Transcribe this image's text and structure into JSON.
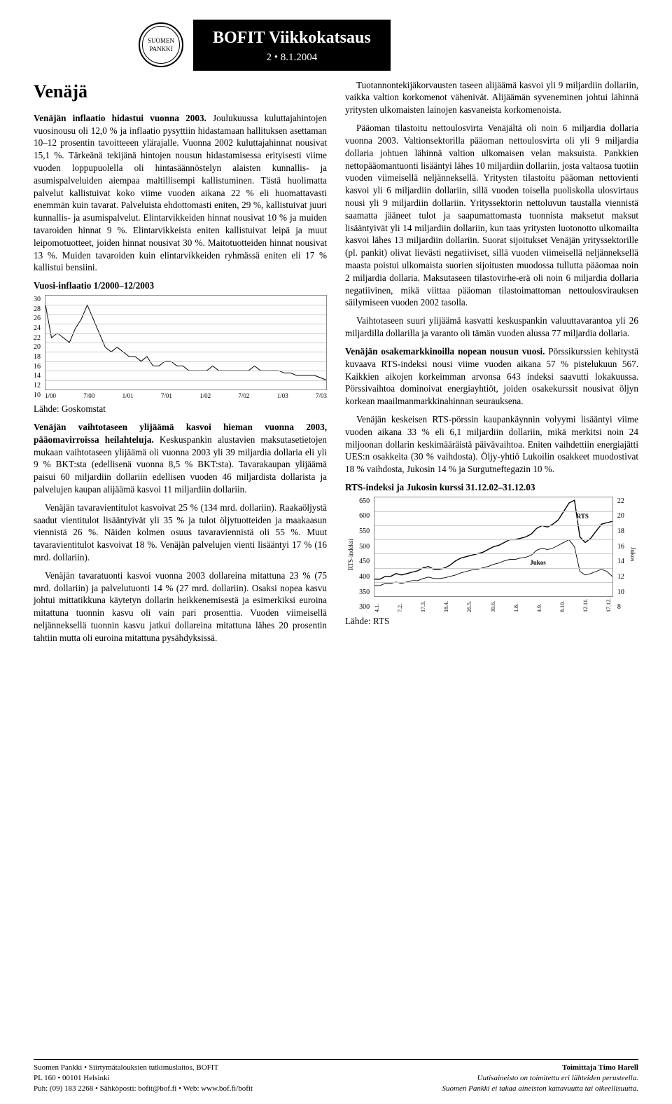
{
  "header": {
    "title": "BOFIT Viikkokatsaus",
    "issue": "2 • 8.1.2004",
    "logo_text": "SUOMEN PANKKI"
  },
  "left": {
    "country": "Venäjä",
    "p1_lead": "Venäjän inflaatio hidastui vuonna 2003.",
    "p1_body": " Joulukuussa kuluttajahintojen vuosinousu oli 12,0 % ja inflaatio pysyttiin hidastamaan hallituksen asettaman 10–12 prosentin tavoitteeen ylärajalle. Vuonna 2002 kuluttajahinnat nousivat 15,1 %. Tärkeänä tekijänä hintojen nousun hidastamisessa erityisesti viime vuoden loppupuolella oli hintasäännöstelyn alaisten kunnallis- ja asumispalveluiden aiempaa maltillisempi kallistuminen. Tästä huolimatta palvelut kallistuivat koko viime vuoden aikana 22 % eli huomattavasti enemmän kuin tavarat. Palveluista ehdottomasti eniten, 29 %, kallistuivat juuri kunnallis- ja asumispalvelut. Elintarvikkeiden hinnat nousivat 10 % ja muiden tavaroiden hinnat 9 %. Elintarvikkeista eniten kallistuivat leipä ja muut leipomotuotteet, joiden hinnat nousivat 30 %. Maitotuotteiden hinnat nousivat 13 %. Muiden tavaroiden kuin elintarvikkeiden ryhmässä eniten eli 17 % kallistui bensiini.",
    "chart1_title": "Vuosi-inflaatio 1/2000–12/2003",
    "chart1": {
      "type": "line",
      "yticks": [
        "10",
        "12",
        "14",
        "16",
        "18",
        "20",
        "22",
        "24",
        "26",
        "28",
        "30"
      ],
      "ylim": [
        10,
        30
      ],
      "xticks": [
        "1/00",
        "7/00",
        "1/01",
        "7/01",
        "1/02",
        "7/02",
        "1/03",
        "7/03"
      ],
      "series_values": [
        28,
        21,
        22,
        21,
        20,
        23,
        25,
        28,
        25,
        22,
        19,
        18,
        19,
        18,
        17,
        17,
        16,
        17,
        15,
        15,
        16,
        16,
        15,
        15,
        14,
        14,
        14,
        14,
        15,
        14,
        14,
        14,
        14,
        14,
        14,
        15,
        14,
        14,
        14,
        14,
        13.5,
        13.5,
        13,
        13,
        13,
        13,
        12.5,
        12
      ],
      "line_color": "#000000",
      "grid_color": "#cccccc",
      "background": "#ffffff"
    },
    "source1": "Lähde: Goskomstat",
    "p2_lead": "Venäjän vaihtotaseen ylijäämä kasvoi hieman vuonna 2003, pääomavirroissa heilahteluja.",
    "p2_body": " Keskuspankin alustavien maksutasetietojen mukaan vaihtotaseen ylijäämä oli vuonna 2003 yli 39 miljardia dollaria eli yli 9 % BKT:sta (edellisenä vuonna 8,5 % BKT:sta). Tavarakaupan ylijäämä paisui 60 miljardiin dollariin edellisen vuoden 46 miljardista dollarista ja palvelujen kaupan alijäämä kasvoi 11 miljardiin dollariin.",
    "p3": "Venäjän tavaravientitulot kasvoivat 25 % (134 mrd. dollariin). Raakaöljystä saadut vientitulot lisääntyivät yli 35 % ja tulot öljytuotteiden ja maakaasun viennistä 26 %. Näiden kolmen osuus tavaraviennistä oli 55 %. Muut tavaravientitulot kasvoivat 18 %. Venäjän palvelujen vienti lisääntyi 17 % (16 mrd. dollariin).",
    "p4": "Venäjän tavaratuonti kasvoi vuonna 2003 dollareina mitattuna 23 % (75 mrd. dollariin) ja palvelutuonti 14 % (27 mrd. dollariin). Osaksi nopea kasvu johtui mittatikkuna käytetyn dollarin heikkenemisestä ja esimerkiksi euroina mitattuna tuonnin kasvu oli vain pari prosenttia. Vuoden viimeisellä neljänneksellä tuonnin kasvu jatkui dollareina mitattuna lähes 20 prosentin tahtiin mutta oli euroina mitattuna pysähdyksissä."
  },
  "right": {
    "p1": "Tuotannontekijäkorvausten taseen alijäämä kasvoi yli 9 miljardiin dollariin, vaikka valtion korkomenot vähenivät. Alijäämän syveneminen johtui lähinnä yritysten ulkomaisten lainojen kasvaneista korkomenoista.",
    "p2": "Pääoman tilastoitu nettoulosvirta Venäjältä oli noin 6 miljardia dollaria vuonna 2003. Valtionsektorilla pääoman nettoulosvirta oli yli 9 miljardia dollaria johtuen lähinnä valtion ulkomaisen velan maksuista. Pankkien nettopääomantuonti lisääntyi lähes 10 miljardiin dollariin, josta valtaosa tuotiin vuoden viimeisellä neljänneksellä. Yritysten tilastoitu pääoman nettovienti kasvoi yli 6 miljardiin dollariin, sillä vuoden toisella puoliskolla ulosvirtaus nousi yli 9 miljardiin dollariin. Yrityssektorin nettoluvun taustalla viennistä saamatta jääneet tulot ja saapumattomasta tuonnista maksetut maksut lisääntyivät yli 14 miljardiin dollariin, kun taas yritysten luotonotto ulkomailta kasvoi lähes 13 miljardiin dollariin. Suorat sijoitukset Venäjän yrityssektorille (pl. pankit) olivat lievästi negatiiviset, sillä vuoden viimeisellä neljänneksellä maasta poistui ulkomaista suorien sijoitusten muodossa tullutta pääomaa noin 2 miljardia dollaria. Maksutaseen tilastovirhe-erä oli noin 6 miljardia dollaria negatiivinen, mikä viittaa pääoman tilastoimattoman nettoulosvirauksen säilymiseen vuoden 2002 tasolla.",
    "p3": "Vaihtotaseen suuri ylijäämä kasvatti keskuspankin valuuttavarantoa yli 26 miljardilla dollarilla ja varanto oli tämän vuoden alussa 77 miljardia dollaria.",
    "p4_lead": "Venäjän osakemarkkinoilla nopean nousun vuosi.",
    "p4_body": " Pörssikurssien kehitystä kuvaava RTS-indeksi nousi viime vuoden aikana 57 % pistelukuun 567. Kaikkien aikojen korkeimman arvonsa 643 indeksi saavutti lokakuussa. Pörssivaihtoa dominoivat energiayhtiöt, joiden osakekurssit nousivat öljyn korkean maailmanmarkkinahinnan seurauksena.",
    "p5": "Venäjän keskeisen RTS-pörssin kaupankäynnin volyymi lisääntyi viime vuoden aikana 33 % eli 6,1 miljardiin dollariin, mikä merkitsi noin 24 miljoonan dollarin keskimääräistä päivävaihtoa. Eniten vaihdettiin energiajätti UES:n osakkeita (30 % vaihdosta). Öljy-yhtiö Lukoilin osakkeet muodostivat 18 % vaihdosta, Jukosin 14 % ja Surgutneftegazin 10 %.",
    "chart2_title": "RTS-indeksi ja Jukosin kurssi 31.12.02–31.12.03",
    "chart2": {
      "type": "line",
      "yticks_left": [
        "300",
        "350",
        "400",
        "450",
        "500",
        "550",
        "600",
        "650"
      ],
      "ylim_left": [
        300,
        650
      ],
      "ylabel_left": "RTS-indeksi",
      "yticks_right": [
        "8",
        "10",
        "12",
        "14",
        "16",
        "18",
        "20",
        "22"
      ],
      "ylim_right": [
        8,
        22
      ],
      "ylabel_right": "Jukos",
      "xticks": [
        "4.1.",
        "7.2.",
        "17.3.",
        "18.4.",
        "26.5.",
        "30.6.",
        "1.8.",
        "4.9.",
        "8.10.",
        "12.11.",
        "17.12."
      ],
      "series": [
        {
          "name": "RTS",
          "color": "#000000",
          "values": [
            360,
            360,
            370,
            370,
            380,
            375,
            380,
            385,
            390,
            400,
            405,
            395,
            395,
            400,
            410,
            425,
            435,
            440,
            445,
            450,
            455,
            465,
            475,
            480,
            490,
            500,
            500,
            505,
            510,
            520,
            540,
            550,
            545,
            555,
            570,
            600,
            630,
            640,
            510,
            490,
            505,
            530,
            555,
            560,
            565
          ]
        },
        {
          "name": "Jukos",
          "color": "#000000",
          "values": [
            9.5,
            9.5,
            9.8,
            9.8,
            10,
            9.8,
            10,
            10.2,
            10.2,
            10.5,
            10.7,
            10.5,
            10.5,
            10.6,
            10.8,
            11,
            11.3,
            11.5,
            11.7,
            11.8,
            12,
            12.2,
            12.5,
            12.7,
            13,
            13.2,
            13.2,
            13.4,
            13.5,
            13.8,
            14.5,
            14.8,
            14.6,
            14.8,
            15.2,
            15.6,
            16,
            15,
            11.5,
            11,
            11.2,
            11.5,
            11.8,
            11.5,
            10.8
          ]
        }
      ],
      "label_rts": "RTS",
      "label_jukos": "Jukos",
      "grid_color": "#cccccc",
      "background": "#ffffff"
    },
    "source2": "Lähde: RTS"
  },
  "footer": {
    "left1": "Suomen Pankki • Siirtymätalouksien tutkimuslaitos, BOFIT",
    "left2": "PL 160 • 00101 Helsinki",
    "left3": "Puh: (09) 183 2268 • Sähköposti: bofit@bof.fi • Web: www.bof.fi/bofit",
    "right1": "Toimittaja Timo Harell",
    "right2": "Uutisaineisto on toimitettu eri lähteiden perusteella.",
    "right3": "Suomen Pankki ei takaa aineiston kattavuutta tai oikeellisuutta."
  }
}
